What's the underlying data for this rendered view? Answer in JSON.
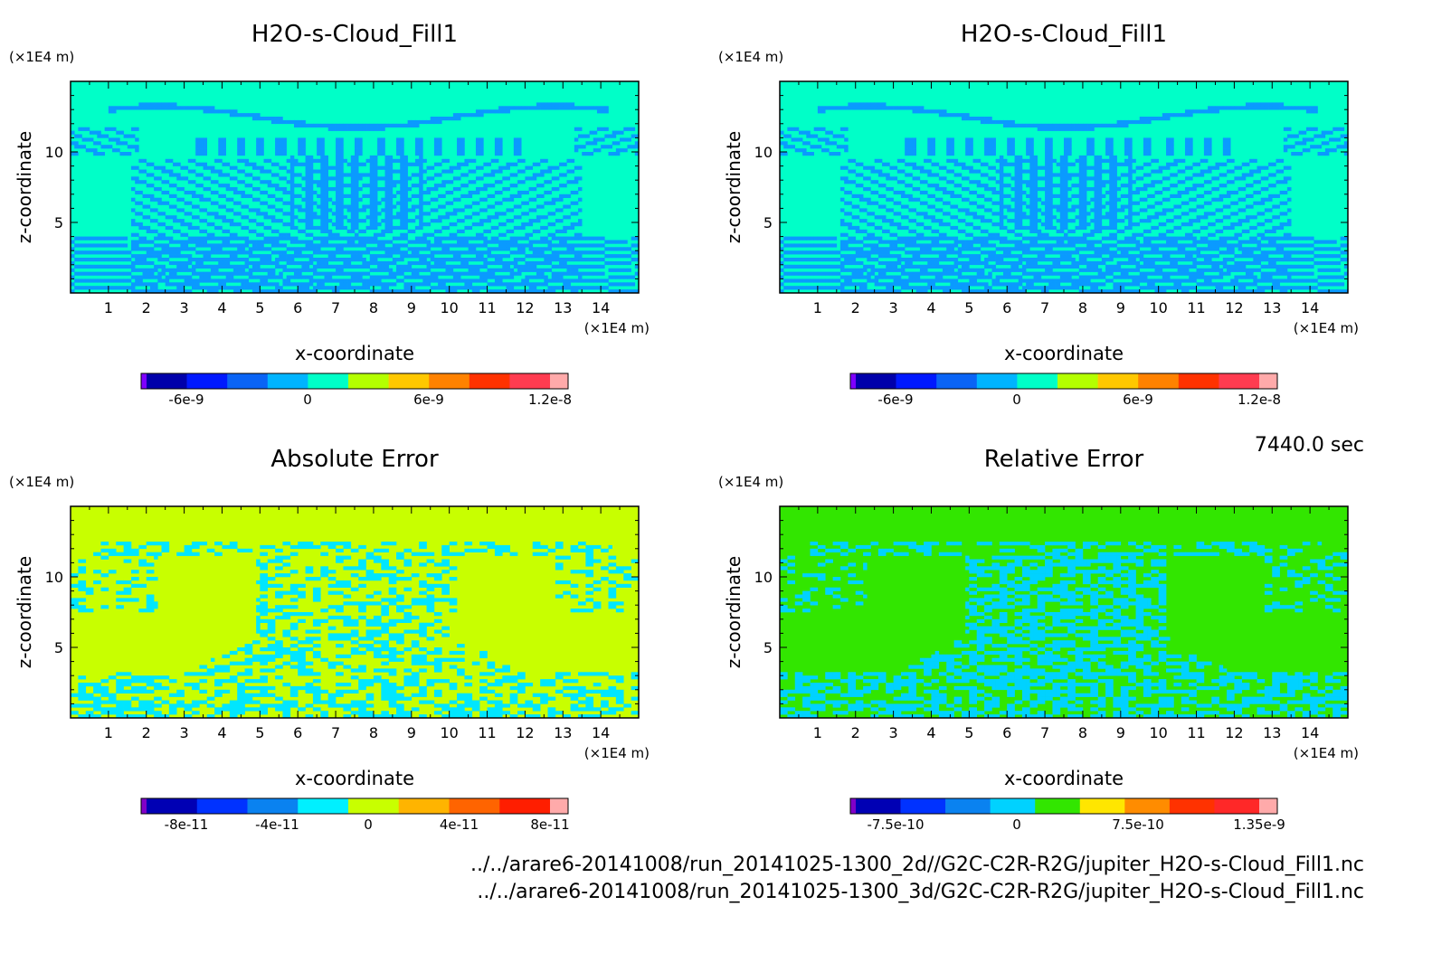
{
  "time_label": "7440.0 sec",
  "files": [
    "../../arare6-20141008/run_20141025-1300_2d//G2C-C2R-R2G/jupiter_H2O-s-Cloud_Fill1.nc",
    "../../arare6-20141008/run_20141025-1300_3d/G2C-C2R-R2G/jupiter_H2O-s-Cloud_Fill1.nc"
  ],
  "chart_data": [
    {
      "type": "heatmap",
      "title": "H2O-s-Cloud_Fill1",
      "xlabel": "x-coordinate",
      "ylabel": "z-coordinate",
      "x_unit": "(×1E4 m)",
      "y_unit": "(×1E4 m)",
      "xlim": [
        0,
        15
      ],
      "ylim": [
        0,
        15
      ],
      "xticks": [
        1,
        2,
        3,
        4,
        5,
        6,
        7,
        8,
        9,
        10,
        11,
        12,
        13,
        14
      ],
      "yticks": [
        5,
        10
      ],
      "colorbar": {
        "colors": [
          "#7f00ff",
          "#0000aa",
          "#0019ff",
          "#0a64f5",
          "#00b4ff",
          "#00ffc8",
          "#b4ff00",
          "#ffc800",
          "#ff8200",
          "#ff3200",
          "#ff3c50",
          "#ffaaaa"
        ],
        "tick_labels": [
          "-6e-9",
          "0",
          "6e-9",
          "1.2e-8"
        ]
      },
      "dominant_color": "#00ffc8",
      "secondary_color": "#0a9aff"
    },
    {
      "type": "heatmap",
      "title": "H2O-s-Cloud_Fill1",
      "xlabel": "x-coordinate",
      "ylabel": "z-coordinate",
      "x_unit": "(×1E4 m)",
      "y_unit": "(×1E4 m)",
      "xlim": [
        0,
        15
      ],
      "ylim": [
        0,
        15
      ],
      "xticks": [
        1,
        2,
        3,
        4,
        5,
        6,
        7,
        8,
        9,
        10,
        11,
        12,
        13,
        14
      ],
      "yticks": [
        5,
        10
      ],
      "colorbar": {
        "colors": [
          "#7f00ff",
          "#0000aa",
          "#0019ff",
          "#0a64f5",
          "#00b4ff",
          "#00ffc8",
          "#b4ff00",
          "#ffc800",
          "#ff8200",
          "#ff3200",
          "#ff3c50",
          "#ffaaaa"
        ],
        "tick_labels": [
          "-6e-9",
          "0",
          "6e-9",
          "1.2e-8"
        ]
      },
      "dominant_color": "#00ffc8",
      "secondary_color": "#0a9aff"
    },
    {
      "type": "heatmap",
      "title": "Absolute Error",
      "xlabel": "x-coordinate",
      "ylabel": "z-coordinate",
      "x_unit": "(×1E4 m)",
      "y_unit": "(×1E4 m)",
      "xlim": [
        0,
        15
      ],
      "ylim": [
        0,
        15
      ],
      "xticks": [
        1,
        2,
        3,
        4,
        5,
        6,
        7,
        8,
        9,
        10,
        11,
        12,
        13,
        14
      ],
      "yticks": [
        5,
        10
      ],
      "colorbar": {
        "colors": [
          "#8200c8",
          "#0000b4",
          "#0032ff",
          "#0a82f0",
          "#00f0ff",
          "#c8ff00",
          "#ffb400",
          "#ff6400",
          "#ff1e00",
          "#ffaaaa"
        ],
        "tick_labels": [
          "-8e-11",
          "-4e-11",
          "0",
          "4e-11",
          "8e-11"
        ]
      },
      "dominant_color": "#c8ff00",
      "secondary_color": "#00e6ff"
    },
    {
      "type": "heatmap",
      "title": "Relative Error",
      "xlabel": "x-coordinate",
      "ylabel": "z-coordinate",
      "x_unit": "(×1E4 m)",
      "y_unit": "(×1E4 m)",
      "xlim": [
        0,
        15
      ],
      "ylim": [
        0,
        15
      ],
      "xticks": [
        1,
        2,
        3,
        4,
        5,
        6,
        7,
        8,
        9,
        10,
        11,
        12,
        13,
        14
      ],
      "yticks": [
        5,
        10
      ],
      "colorbar": {
        "colors": [
          "#8200c8",
          "#0000b4",
          "#0032ff",
          "#0a82f0",
          "#00d2ff",
          "#32e600",
          "#ffe600",
          "#ff8c00",
          "#ff3200",
          "#ff2828",
          "#ffaaaa"
        ],
        "tick_labels": [
          "-7.5e-10",
          "0",
          "7.5e-10",
          "1.35e-9"
        ]
      },
      "dominant_color": "#32e600",
      "secondary_color": "#00d2ff"
    }
  ]
}
